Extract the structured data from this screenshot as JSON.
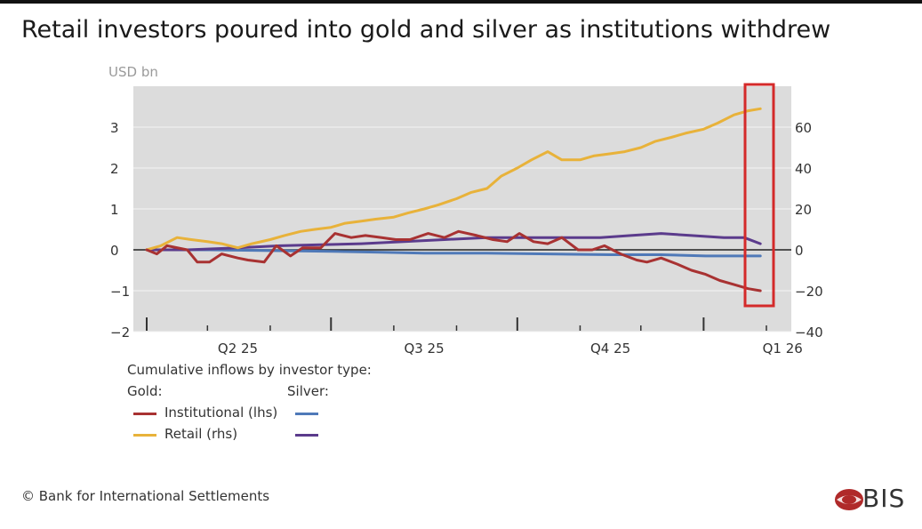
{
  "title": "Retail investors poured into gold and silver as institutions withdrew",
  "footer": {
    "copyright": "© Bank for International Settlements",
    "logo_text": "BIS"
  },
  "legend": {
    "heading": "Cumulative inflows by investor type:",
    "gold_label": "Gold:",
    "silver_label": "Silver:",
    "institutional": "Institutional (lhs)",
    "retail": "Retail (rhs)"
  },
  "colors": {
    "gold_institutional": "#a83232",
    "gold_retail": "#e8b23a",
    "silver_institutional": "#4f79b8",
    "silver_retail": "#5b3b8c",
    "plot_bg": "#dcdcdc",
    "highlight_box": "#d42a2a"
  },
  "chart_data": {
    "type": "line",
    "unit_label": "USD bn",
    "x_categories": [
      "Q2 25",
      "Q3 25",
      "Q4 25",
      "Q1 26"
    ],
    "x_range": [
      "2025-03-31",
      "2026-01-31"
    ],
    "y_left": {
      "range": [
        -2,
        4
      ],
      "ticks": [
        3,
        2,
        1,
        0,
        -1,
        -2
      ]
    },
    "y_right": {
      "range": [
        -40,
        80
      ],
      "ticks": [
        60,
        40,
        20,
        0,
        -20,
        -40
      ]
    },
    "grid": true,
    "highlight": "latest observations (Jan 2026) boxed in red",
    "series": [
      {
        "name": "Gold Institutional (lhs)",
        "commodity": "Gold",
        "investor": "Institutional",
        "axis": "left",
        "x": [
          "2025-03-31",
          "2025-04-05",
          "2025-04-10",
          "2025-04-20",
          "2025-04-25",
          "2025-05-01",
          "2025-05-07",
          "2025-05-15",
          "2025-05-20",
          "2025-05-28",
          "2025-06-03",
          "2025-06-10",
          "2025-06-16",
          "2025-06-25",
          "2025-07-02",
          "2025-07-10",
          "2025-07-17",
          "2025-07-25",
          "2025-08-01",
          "2025-08-08",
          "2025-08-17",
          "2025-08-25",
          "2025-09-01",
          "2025-09-10",
          "2025-09-18",
          "2025-09-25",
          "2025-10-01",
          "2025-10-08",
          "2025-10-15",
          "2025-10-22",
          "2025-10-30",
          "2025-11-06",
          "2025-11-12",
          "2025-11-20",
          "2025-11-28",
          "2025-12-03",
          "2025-12-10",
          "2025-12-18",
          "2025-12-25",
          "2026-01-01",
          "2026-01-08",
          "2026-01-15",
          "2026-01-22",
          "2026-01-28"
        ],
        "values": [
          0.0,
          -0.1,
          0.1,
          0.0,
          -0.3,
          -0.3,
          -0.1,
          -0.2,
          -0.25,
          -0.3,
          0.1,
          -0.15,
          0.05,
          0.05,
          0.4,
          0.3,
          0.35,
          0.3,
          0.25,
          0.25,
          0.4,
          0.3,
          0.45,
          0.35,
          0.25,
          0.2,
          0.4,
          0.2,
          0.15,
          0.3,
          0.0,
          0.0,
          0.1,
          -0.1,
          -0.25,
          -0.3,
          -0.2,
          -0.35,
          -0.5,
          -0.6,
          -0.75,
          -0.85,
          -0.95,
          -1.0
        ]
      },
      {
        "name": "Gold Retail (rhs)",
        "commodity": "Gold",
        "investor": "Retail",
        "axis": "right",
        "x": [
          "2025-03-31",
          "2025-04-07",
          "2025-04-15",
          "2025-04-22",
          "2025-04-30",
          "2025-05-07",
          "2025-05-15",
          "2025-05-22",
          "2025-05-31",
          "2025-06-07",
          "2025-06-15",
          "2025-06-22",
          "2025-06-30",
          "2025-07-07",
          "2025-07-15",
          "2025-07-22",
          "2025-07-31",
          "2025-08-07",
          "2025-08-15",
          "2025-08-22",
          "2025-08-31",
          "2025-09-07",
          "2025-09-15",
          "2025-09-22",
          "2025-09-30",
          "2025-10-07",
          "2025-10-15",
          "2025-10-22",
          "2025-10-31",
          "2025-11-07",
          "2025-11-15",
          "2025-11-22",
          "2025-11-30",
          "2025-12-07",
          "2025-12-15",
          "2025-12-22",
          "2025-12-31",
          "2026-01-07",
          "2026-01-15",
          "2026-01-22",
          "2026-01-28"
        ],
        "values": [
          0,
          2,
          6,
          5,
          4,
          3,
          1,
          3,
          5,
          7,
          9,
          10,
          11,
          13,
          14,
          15,
          16,
          18,
          20,
          22,
          25,
          28,
          30,
          36,
          40,
          44,
          48,
          44,
          44,
          46,
          47,
          48,
          50,
          53,
          55,
          57,
          59,
          62,
          66,
          68,
          69
        ]
      },
      {
        "name": "Silver Institutional",
        "commodity": "Silver",
        "investor": "Institutional",
        "axis": "left",
        "x": [
          "2025-03-31",
          "2025-05-01",
          "2025-06-01",
          "2025-07-01",
          "2025-07-25",
          "2025-08-15",
          "2025-09-15",
          "2025-10-15",
          "2025-11-15",
          "2025-12-10",
          "2026-01-01",
          "2026-01-28"
        ],
        "values": [
          0.0,
          0.0,
          -0.02,
          -0.04,
          -0.06,
          -0.08,
          -0.08,
          -0.1,
          -0.12,
          -0.12,
          -0.15,
          -0.15
        ]
      },
      {
        "name": "Silver Retail",
        "commodity": "Silver",
        "investor": "Retail",
        "axis": "right",
        "x": [
          "2025-03-31",
          "2025-04-20",
          "2025-05-15",
          "2025-06-05",
          "2025-06-25",
          "2025-07-15",
          "2025-08-05",
          "2025-08-25",
          "2025-09-15",
          "2025-10-05",
          "2025-10-25",
          "2025-11-10",
          "2025-11-25",
          "2025-12-10",
          "2025-12-25",
          "2026-01-10",
          "2026-01-20",
          "2026-01-28"
        ],
        "values": [
          0,
          0,
          1,
          2,
          2.5,
          3,
          4,
          5,
          6,
          6,
          6,
          6,
          7,
          8,
          7,
          6,
          6,
          3
        ]
      }
    ]
  }
}
